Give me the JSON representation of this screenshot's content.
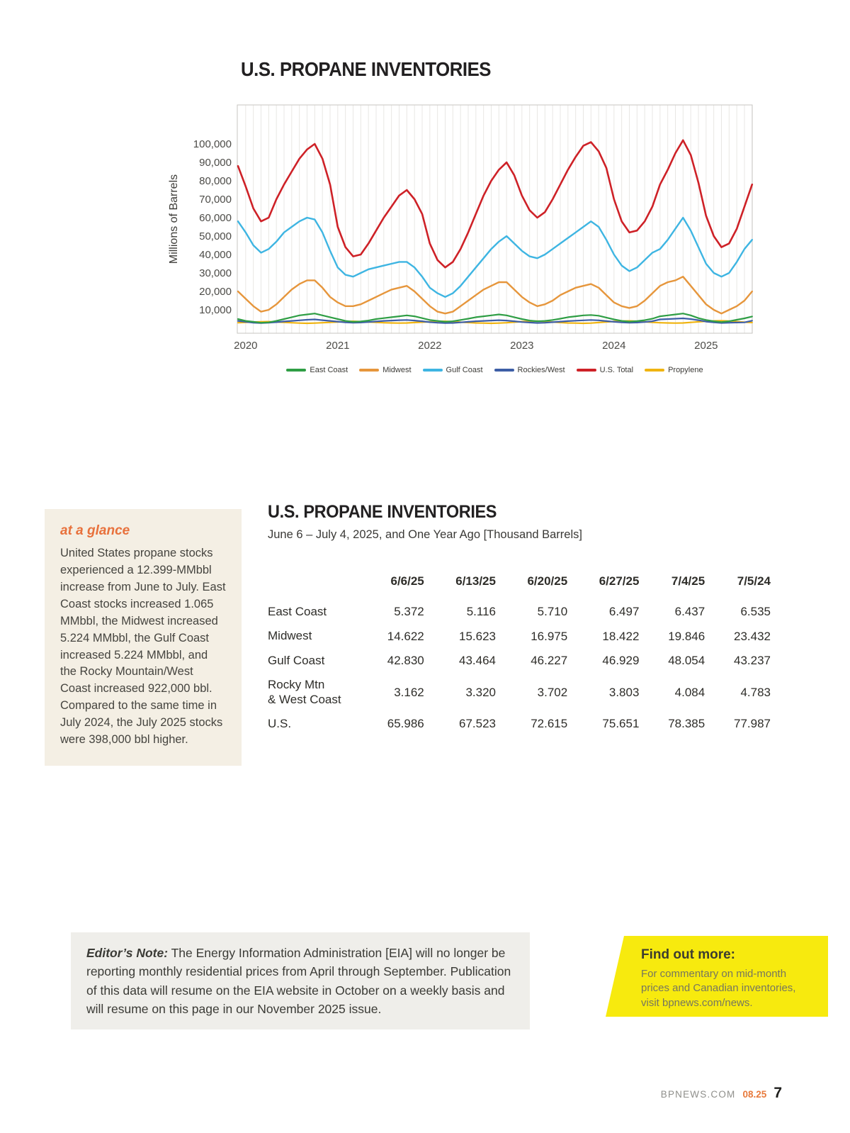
{
  "chart_data": {
    "type": "line",
    "title": "U.S. PROPANE INVENTORIES",
    "ylabel": "Millions of Barrels",
    "xlabel": "",
    "x_start": 2019.9167,
    "x_step": "1 month",
    "x_tick_labels": [
      "2020",
      "2021",
      "2022",
      "2023",
      "2024",
      "2025"
    ],
    "y_tick_labels": [
      "100,000",
      "90,000",
      "80,000",
      "70,000",
      "60,000",
      "50,000",
      "40,000",
      "30,000",
      "20,000",
      "10,000"
    ],
    "y_tick_values": [
      100000,
      90000,
      80000,
      70000,
      60000,
      50000,
      40000,
      30000,
      20000,
      10000
    ],
    "ylim": [
      0,
      121000
    ],
    "grid": "vertical-monthly",
    "legend_position": "bottom",
    "draw_order": [
      5,
      3,
      0,
      1,
      2,
      4
    ],
    "series": [
      {
        "name": "East Coast",
        "color": "#2f9e45",
        "width": 2.2,
        "values": [
          5000,
          4000,
          3500,
          3000,
          3200,
          4000,
          5000,
          6000,
          7000,
          7500,
          8000,
          7000,
          6000,
          5000,
          4000,
          3500,
          3700,
          4200,
          5000,
          5500,
          6000,
          6500,
          7000,
          6500,
          5500,
          4500,
          4000,
          3500,
          3800,
          4500,
          5200,
          6000,
          6500,
          7000,
          7500,
          7000,
          6000,
          5000,
          4200,
          3800,
          4000,
          4500,
          5200,
          6000,
          6500,
          7000,
          7200,
          6800,
          5800,
          4800,
          4000,
          3600,
          3900,
          4400,
          5200,
          6500,
          7000,
          7500,
          8000,
          7000,
          5500,
          4500,
          3800,
          3400,
          3800,
          4600,
          5400,
          6400
        ]
      },
      {
        "name": "Midwest",
        "color": "#e6963c",
        "width": 2.4,
        "values": [
          20000,
          16000,
          12000,
          9000,
          10000,
          13000,
          17000,
          21000,
          24000,
          26000,
          26000,
          22000,
          17000,
          14000,
          12000,
          12000,
          13000,
          15000,
          17000,
          19000,
          21000,
          22000,
          23000,
          20000,
          16000,
          12000,
          9000,
          8000,
          9000,
          12000,
          15000,
          18000,
          21000,
          23000,
          25000,
          25000,
          21000,
          17000,
          14000,
          12000,
          13000,
          15000,
          18000,
          20000,
          22000,
          23000,
          24000,
          22000,
          18000,
          14000,
          12000,
          11000,
          12000,
          15000,
          19000,
          23000,
          25000,
          26000,
          28000,
          23000,
          18000,
          13000,
          10000,
          8000,
          10000,
          12000,
          15000,
          20000
        ]
      },
      {
        "name": "Gulf Coast",
        "color": "#3eb5e2",
        "width": 2.4,
        "values": [
          58000,
          52000,
          45000,
          41000,
          43000,
          47000,
          52000,
          55000,
          58000,
          60000,
          59000,
          52000,
          42000,
          33000,
          29000,
          28000,
          30000,
          32000,
          33000,
          34000,
          35000,
          36000,
          36000,
          33000,
          28000,
          22000,
          19000,
          17000,
          19000,
          23000,
          28000,
          33000,
          38000,
          43000,
          47000,
          50000,
          46000,
          42000,
          39000,
          38000,
          40000,
          43000,
          46000,
          49000,
          52000,
          55000,
          58000,
          55000,
          48000,
          40000,
          34000,
          31000,
          33000,
          37000,
          41000,
          43000,
          48000,
          54000,
          60000,
          53000,
          44000,
          35000,
          30000,
          28000,
          30000,
          36000,
          43000,
          48000
        ]
      },
      {
        "name": "Rockies/West",
        "color": "#3d5ea6",
        "width": 2.2,
        "values": [
          4000,
          3500,
          3000,
          2800,
          3000,
          3300,
          3700,
          4000,
          4300,
          4600,
          4800,
          4400,
          4000,
          3600,
          3200,
          3000,
          3100,
          3400,
          3700,
          4000,
          4200,
          4400,
          4500,
          4200,
          3800,
          3300,
          3000,
          2800,
          2900,
          3200,
          3500,
          3800,
          4000,
          4200,
          4400,
          4200,
          3800,
          3400,
          3100,
          2900,
          3000,
          3300,
          3600,
          3900,
          4100,
          4300,
          4500,
          4300,
          3900,
          3500,
          3200,
          3000,
          3100,
          3400,
          3800,
          4800,
          5000,
          5200,
          5400,
          5000,
          4400,
          3600,
          3200,
          2900,
          3000,
          3100,
          3200,
          4100
        ]
      },
      {
        "name": "U.S. Total",
        "color": "#ce2127",
        "width": 2.6,
        "values": [
          88000,
          77000,
          65000,
          58000,
          60000,
          70000,
          78000,
          85000,
          92000,
          97000,
          100000,
          92000,
          78000,
          55000,
          44000,
          39000,
          40000,
          46000,
          53000,
          60000,
          66000,
          72000,
          75000,
          70000,
          62000,
          46000,
          37000,
          33000,
          36000,
          43000,
          52000,
          62000,
          72000,
          80000,
          86000,
          90000,
          83000,
          72000,
          64000,
          60000,
          63000,
          70000,
          78000,
          86000,
          93000,
          99000,
          101000,
          96000,
          87000,
          70000,
          58000,
          52000,
          53000,
          58000,
          66000,
          78000,
          86000,
          95000,
          102000,
          94000,
          79000,
          61000,
          50000,
          44000,
          46000,
          54000,
          66000,
          78000
        ]
      },
      {
        "name": "Propylene",
        "color": "#f0b411",
        "width": 2.2,
        "values": [
          3000,
          3200,
          3400,
          3500,
          3600,
          3400,
          3200,
          3000,
          2800,
          2700,
          2800,
          3000,
          3200,
          3400,
          3600,
          3800,
          3600,
          3400,
          3200,
          3000,
          2900,
          2800,
          2900,
          3100,
          3300,
          3500,
          3700,
          3800,
          3600,
          3300,
          3100,
          2900,
          2800,
          2700,
          2800,
          3000,
          3300,
          3600,
          3800,
          3900,
          3700,
          3400,
          3100,
          2900,
          2800,
          2700,
          2800,
          3100,
          3400,
          3700,
          3900,
          4000,
          3800,
          3500,
          3200,
          3000,
          2900,
          2800,
          2900,
          3200,
          3500,
          3800,
          4000,
          4100,
          3900,
          3600,
          3300,
          3100
        ]
      }
    ]
  },
  "at_a_glance": {
    "title": "at a glance",
    "body": "United States propane stocks experienced a 12.399-MMbbl increase from June to July. East Coast stocks increased 1.065 MMbbl, the Midwest increased 5.224 MMbbl, the Gulf Coast increased 5.224 MMbbl, and the Rocky Mountain/West Coast increased 922,000 bbl. Compared to the same time in July 2024, the July 2025 stocks were 398,000 bbl higher."
  },
  "table_section": {
    "title": "U.S. PROPANE INVENTORIES",
    "subtitle": "June 6 – July 4, 2025, and One Year Ago [Thousand Barrels]"
  },
  "table": {
    "columns": [
      "",
      "6/6/25",
      "6/13/25",
      "6/20/25",
      "6/27/25",
      "7/4/25",
      "7/5/24"
    ],
    "rows": [
      {
        "label": "East Coast",
        "values": [
          "5.372",
          "5.116",
          "5.710",
          "6.497",
          "6.437",
          "6.535"
        ]
      },
      {
        "label": "Midwest",
        "values": [
          "14.622",
          "15.623",
          "16.975",
          "18.422",
          "19.846",
          "23.432"
        ]
      },
      {
        "label": "Gulf Coast",
        "values": [
          "42.830",
          "43.464",
          "46.227",
          "46.929",
          "48.054",
          "43.237"
        ]
      },
      {
        "label": "Rocky Mtn\n& West Coast",
        "values": [
          "3.162",
          "3.320",
          "3.702",
          "3.803",
          "4.084",
          "4.783"
        ]
      },
      {
        "label": "U.S.",
        "values": [
          "65.986",
          "67.523",
          "72.615",
          "75.651",
          "78.385",
          "77.987"
        ]
      }
    ]
  },
  "editors_note": {
    "label": "Editor’s Note:",
    "text": " The Energy Information Administration [EIA] will no longer be reporting monthly residential prices from April through September. Publication of this data will resume on the EIA website in October on a weekly basis and will resume on this page in our November 2025 issue."
  },
  "find_out_more": {
    "title": "Find out more:",
    "body": "For commentary on mid-month prices and Canadian inventories, visit bpnews.com/news."
  },
  "footer": {
    "site": "BPNEWS.COM",
    "issue": "08.25",
    "page_number": "7"
  }
}
